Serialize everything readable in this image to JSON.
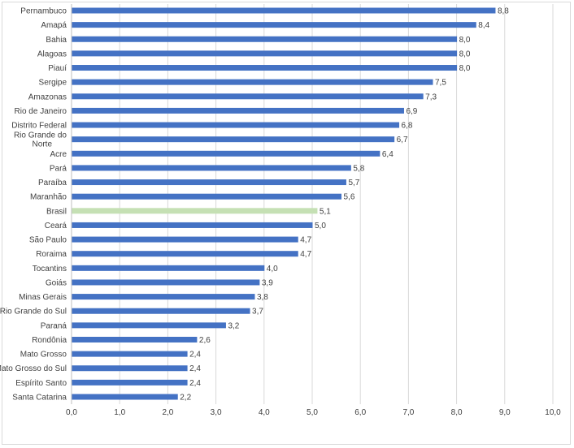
{
  "chart_data": {
    "type": "bar",
    "orientation": "horizontal",
    "title": "",
    "xlabel": "",
    "ylabel": "",
    "xlim": [
      0,
      10
    ],
    "x_ticks": [
      "0,0",
      "1,0",
      "2,0",
      "3,0",
      "4,0",
      "5,0",
      "6,0",
      "7,0",
      "8,0",
      "9,0",
      "10,0"
    ],
    "grid": true,
    "categories": [
      "Pernambuco",
      "Amapá",
      "Bahia",
      "Alagoas",
      "Piauí",
      "Sergipe",
      "Amazonas",
      "Rio de Janeiro",
      "Distrito Federal",
      "Rio Grande do Norte",
      "Acre",
      "Pará",
      "Paraíba",
      "Maranhão",
      "Brasil",
      "Ceará",
      "São Paulo",
      "Roraima",
      "Tocantins",
      "Goiás",
      "Minas Gerais",
      "Rio Grande do Sul",
      "Paraná",
      "Rondônia",
      "Mato Grosso",
      "Mato Grosso do Sul",
      "Espírito Santo",
      "Santa Catarina"
    ],
    "values": [
      8.8,
      8.4,
      8.0,
      8.0,
      8.0,
      7.5,
      7.3,
      6.9,
      6.8,
      6.7,
      6.4,
      5.8,
      5.7,
      5.6,
      5.1,
      5.0,
      4.7,
      4.7,
      4.0,
      3.9,
      3.8,
      3.7,
      3.2,
      2.6,
      2.4,
      2.4,
      2.4,
      2.2
    ],
    "data_labels": [
      "8,8",
      "8,4",
      "8,0",
      "8,0",
      "8,0",
      "7,5",
      "7,3",
      "6,9",
      "6,8",
      "6,7",
      "6,4",
      "5,8",
      "5,7",
      "5,6",
      "5,1",
      "5,0",
      "4,7",
      "4,7",
      "4,0",
      "3,9",
      "3,8",
      "3,7",
      "3,2",
      "2,6",
      "2,4",
      "2,4",
      "2,4",
      "2,2"
    ],
    "highlight_category": "Brasil",
    "colors": {
      "bar": "#4472c4",
      "highlight": "#c5e0b4",
      "grid": "#d9d9d9"
    }
  }
}
